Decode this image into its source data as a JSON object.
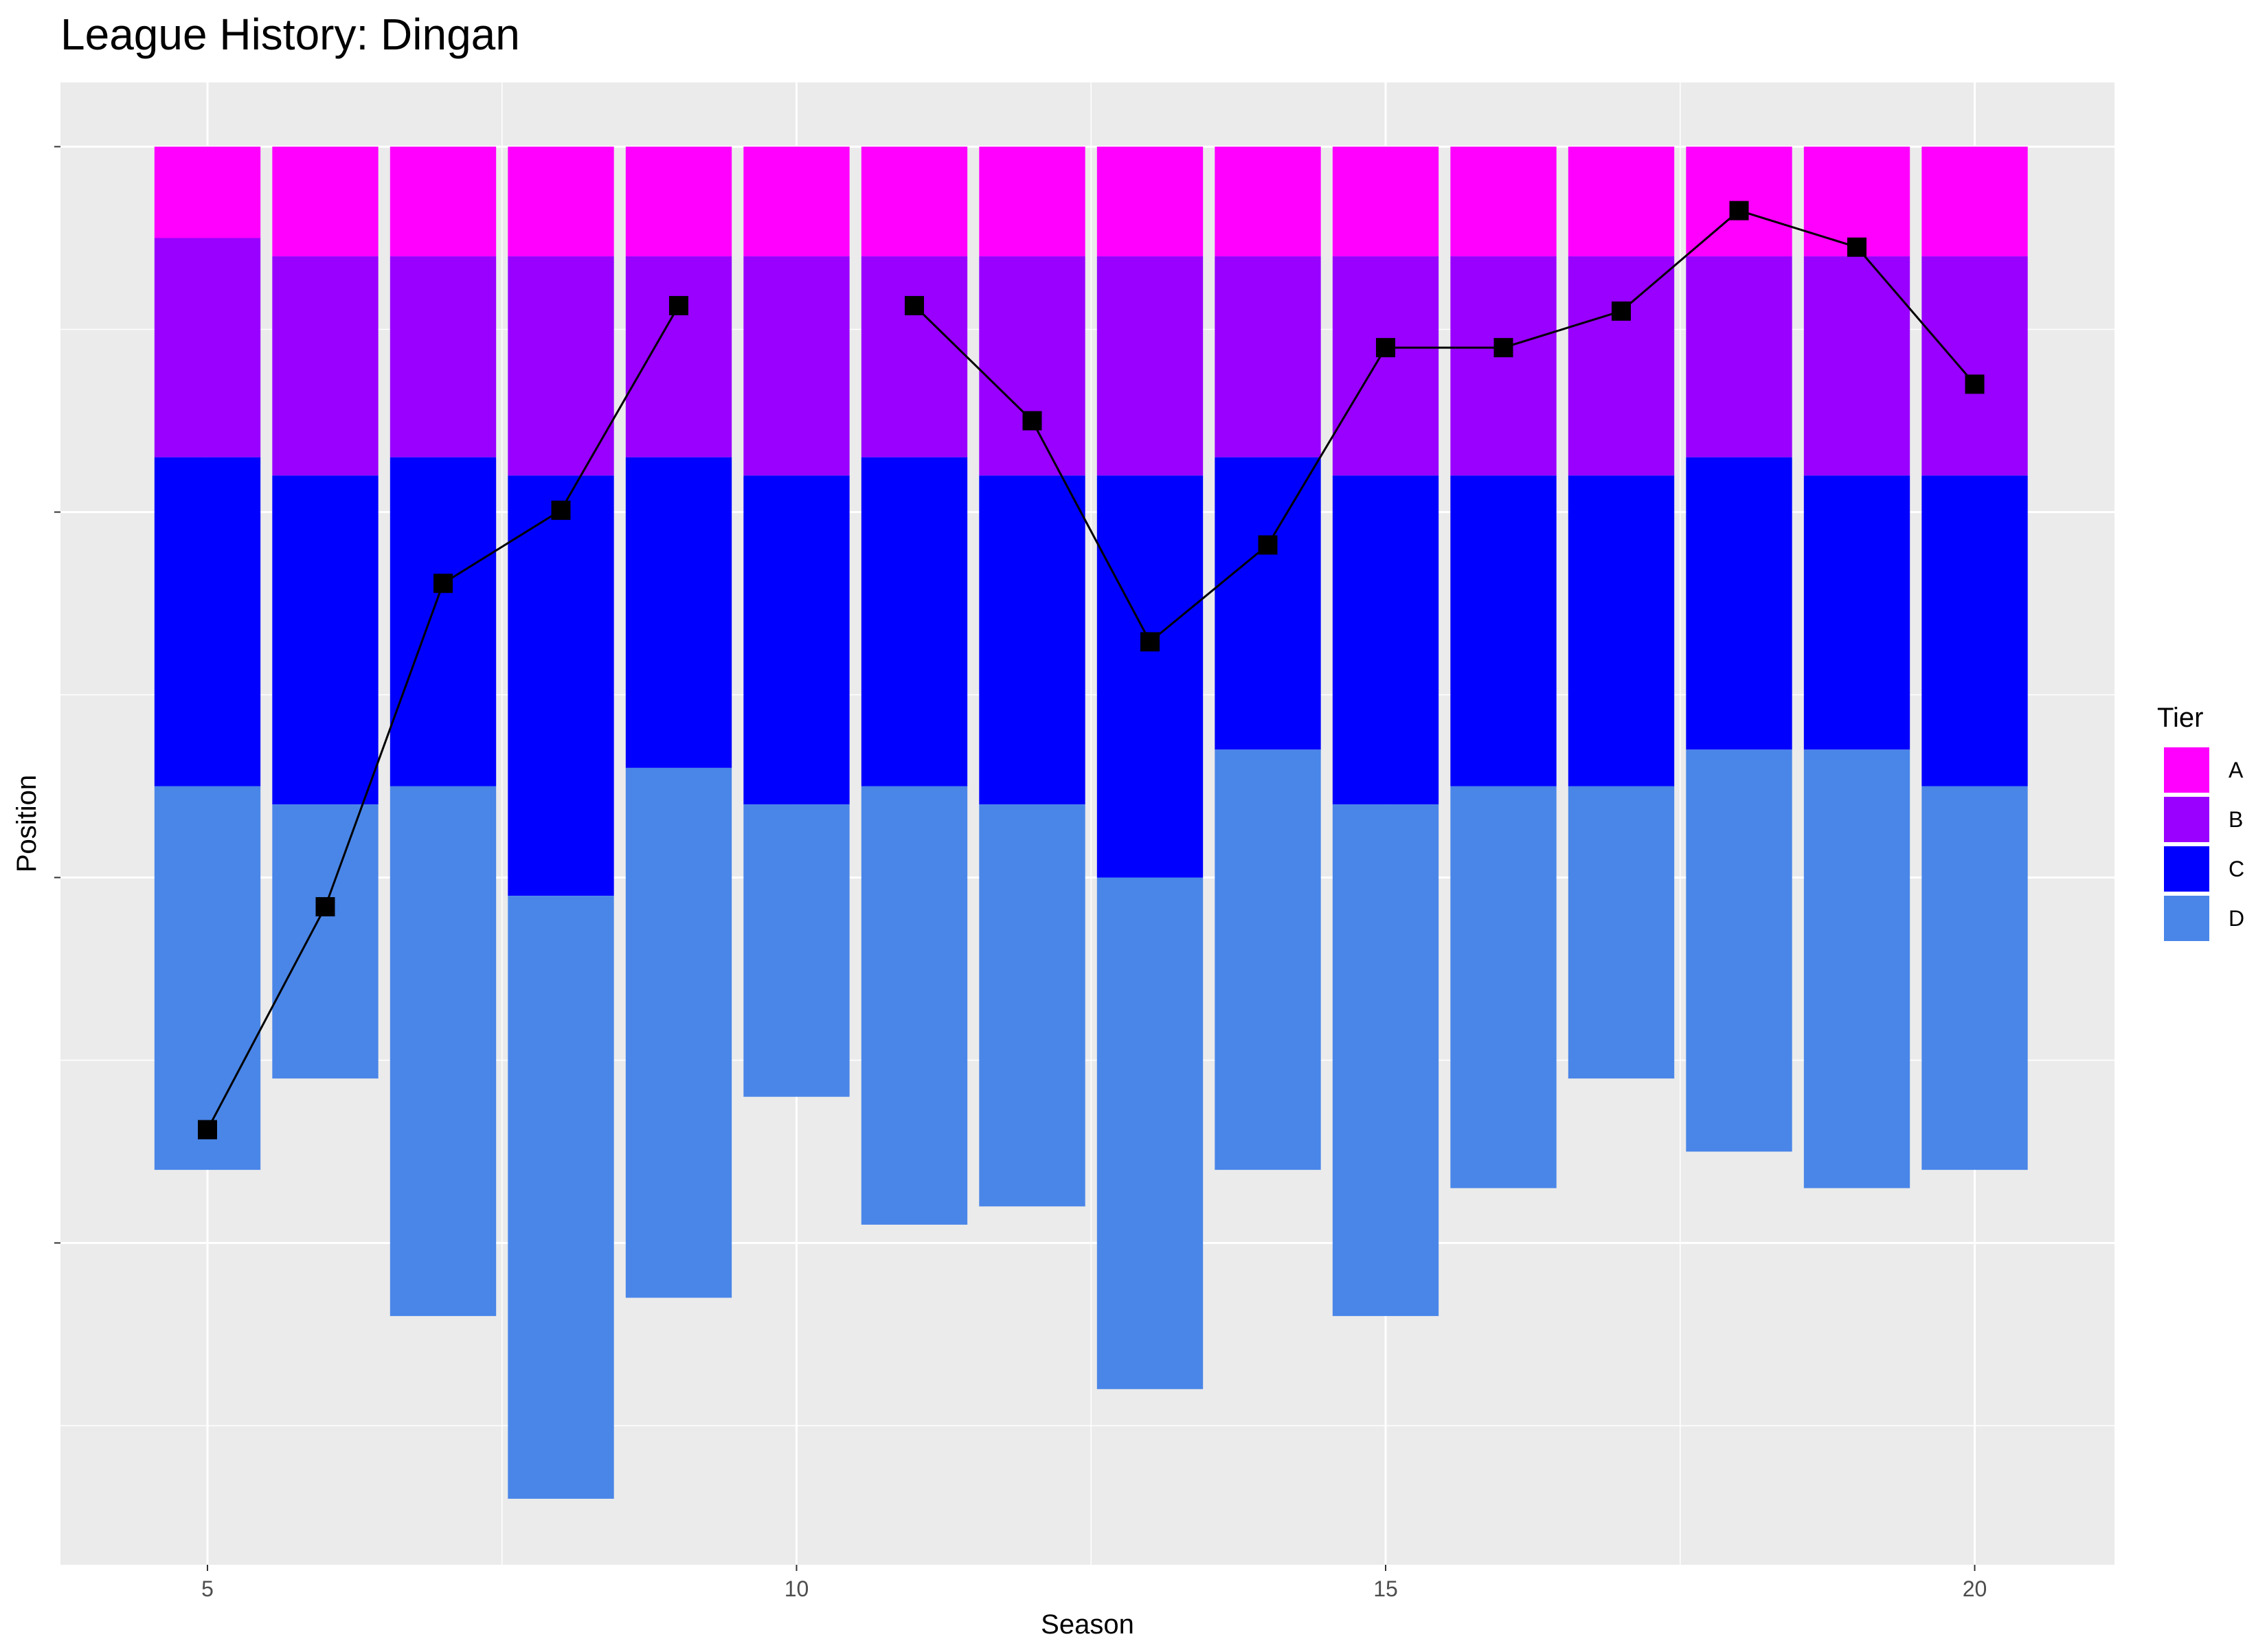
{
  "chart_data": {
    "type": "bar",
    "title": "League History: Dingan",
    "xlabel": "Season",
    "ylabel": "Position",
    "xlim": [
      3.75,
      21.25
    ],
    "ylim": [
      77,
      0
    ],
    "x_ticks": [
      5,
      10,
      15,
      20
    ],
    "y_ticks": [
      0,
      20,
      40,
      60
    ],
    "y_tick_labels_shown": false,
    "grid": true,
    "legend": {
      "title": "Tier",
      "position": "right",
      "entries": [
        {
          "key": "A",
          "label": "A",
          "color": "#FF00FF"
        },
        {
          "key": "B",
          "label": "B",
          "color": "#9900FF"
        },
        {
          "key": "C",
          "label": "C",
          "color": "#0000FF"
        },
        {
          "key": "D",
          "label": "D",
          "color": "#4A86E8"
        }
      ]
    },
    "stacked_bars": [
      {
        "season": 5,
        "A": 5,
        "B": 12,
        "C": 18,
        "D": 21
      },
      {
        "season": 6,
        "A": 6,
        "B": 12,
        "C": 18,
        "D": 15
      },
      {
        "season": 7,
        "A": 6,
        "B": 11,
        "C": 18,
        "D": 29
      },
      {
        "season": 8,
        "A": 6,
        "B": 12,
        "C": 23,
        "D": 33
      },
      {
        "season": 9,
        "A": 6,
        "B": 11,
        "C": 17,
        "D": 29
      },
      {
        "season": 10,
        "A": 6,
        "B": 12,
        "C": 18,
        "D": 16
      },
      {
        "season": 11,
        "A": 6,
        "B": 11,
        "C": 18,
        "D": 24
      },
      {
        "season": 12,
        "A": 6,
        "B": 12,
        "C": 18,
        "D": 22
      },
      {
        "season": 13,
        "A": 6,
        "B": 12,
        "C": 22,
        "D": 28
      },
      {
        "season": 14,
        "A": 6,
        "B": 11,
        "C": 16,
        "D": 23
      },
      {
        "season": 15,
        "A": 6,
        "B": 12,
        "C": 18,
        "D": 28
      },
      {
        "season": 16,
        "A": 6,
        "B": 12,
        "C": 17,
        "D": 22
      },
      {
        "season": 17,
        "A": 6,
        "B": 12,
        "C": 17,
        "D": 16
      },
      {
        "season": 18,
        "A": 6,
        "B": 11,
        "C": 16,
        "D": 22
      },
      {
        "season": 19,
        "A": 6,
        "B": 12,
        "C": 15,
        "D": 24
      },
      {
        "season": 20,
        "A": 6,
        "B": 12,
        "C": 17,
        "D": 21
      }
    ],
    "line": {
      "marker": "square",
      "color": "#000000",
      "points": [
        [
          5,
          53.8
        ],
        [
          6,
          41.6
        ],
        [
          7,
          23.9
        ],
        [
          8,
          19.9
        ],
        [
          9,
          8.7
        ],
        [
          10,
          null
        ],
        [
          11,
          8.7
        ],
        [
          12,
          15.0
        ],
        [
          13,
          27.1
        ],
        [
          14,
          21.8
        ],
        [
          15,
          11.0
        ],
        [
          16,
          11.0
        ],
        [
          17,
          9.0
        ],
        [
          18,
          3.5
        ],
        [
          19,
          5.5
        ],
        [
          20,
          13.0
        ]
      ]
    }
  }
}
